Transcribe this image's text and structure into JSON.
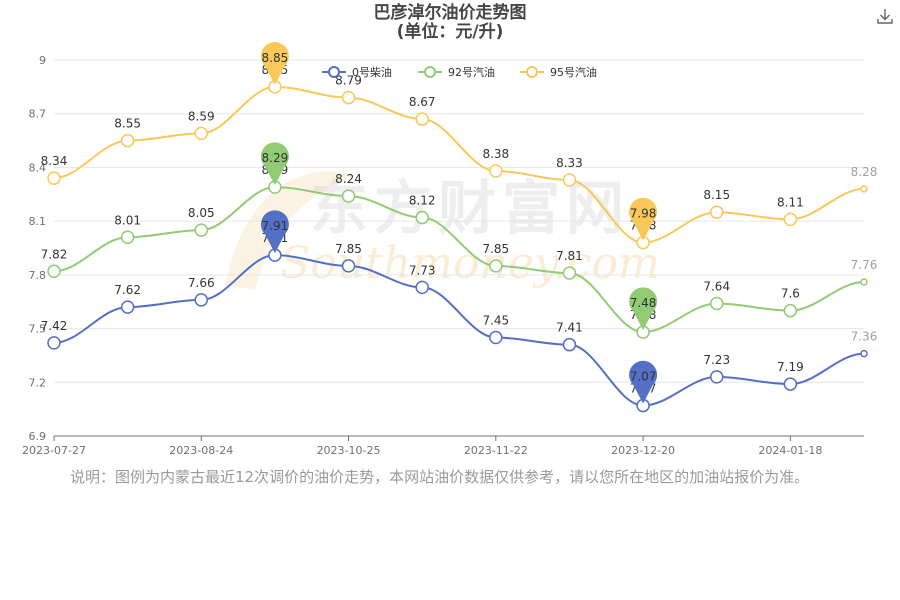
{
  "title": "巴彦淖尔油价走势图",
  "subtitle": "(单位：元/升)",
  "download_icon": "download-icon",
  "note": "说明：图例为内蒙古最近12次调价的油价走势，本网站油价数据仅供参考，请以您所在地区的加油站报价为准。",
  "watermark": {
    "text_cn": "东方财富网",
    "text_en": "Southmoney.com"
  },
  "chart_data": {
    "type": "line",
    "x_tick_labels": [
      "2023-07-27",
      "2023-08-24",
      "2023-10-25",
      "2023-11-22",
      "2023-12-20",
      "2024-01-18"
    ],
    "y_ticks": [
      6.9,
      7.2,
      7.5,
      7.8,
      8.1,
      8.4,
      8.7,
      9
    ],
    "ylim": [
      6.9,
      9
    ],
    "grid": "horizontal",
    "legend_position": "top-center",
    "series": [
      {
        "name": "0号柴油",
        "color": "#5470c6",
        "values": [
          7.42,
          7.62,
          7.66,
          7.91,
          7.85,
          7.73,
          7.45,
          7.41,
          7.07,
          7.23,
          7.19,
          7.36
        ],
        "max": 7.91,
        "min": 7.07
      },
      {
        "name": "92号汽油",
        "color": "#91cc75",
        "values": [
          7.82,
          8.01,
          8.05,
          8.29,
          8.24,
          8.12,
          7.85,
          7.81,
          7.48,
          7.64,
          7.6,
          7.76
        ],
        "max": 8.29,
        "min": 7.48
      },
      {
        "name": "95号汽油",
        "color": "#fac858",
        "values": [
          8.34,
          8.55,
          8.59,
          8.85,
          8.79,
          8.67,
          8.38,
          8.33,
          7.98,
          8.15,
          8.11,
          8.28
        ],
        "max": 8.85,
        "min": 7.98
      }
    ]
  }
}
